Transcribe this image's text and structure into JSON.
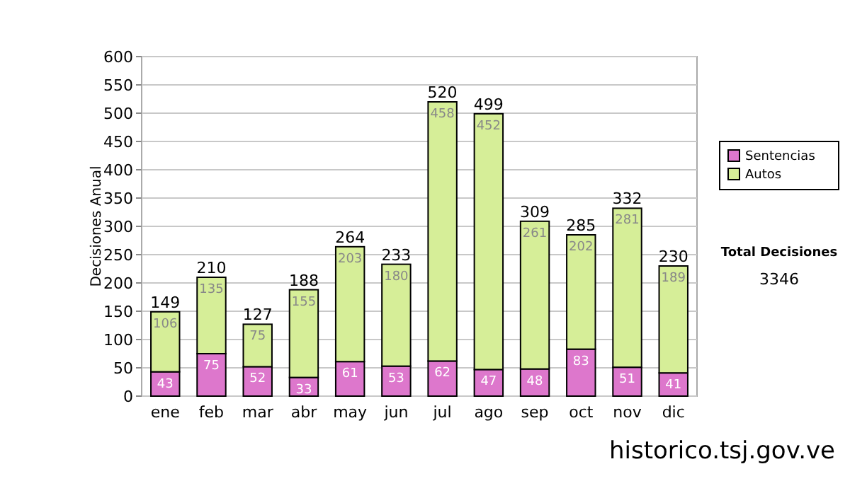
{
  "chart_data": {
    "type": "bar",
    "stacked": true,
    "ylabel": "Decisiones Anual",
    "categories": [
      "ene",
      "feb",
      "mar",
      "abr",
      "may",
      "jun",
      "jul",
      "ago",
      "sep",
      "oct",
      "nov",
      "dic"
    ],
    "series": [
      {
        "name": "Sentencias",
        "color": "#dd77cc",
        "values": [
          43,
          75,
          52,
          33,
          61,
          53,
          62,
          47,
          48,
          83,
          51,
          41
        ]
      },
      {
        "name": "Autos",
        "color": "#d6ee98",
        "values": [
          106,
          135,
          75,
          155,
          203,
          180,
          458,
          452,
          261,
          202,
          281,
          189
        ]
      }
    ],
    "totals": [
      "149",
      "210",
      "127",
      "188",
      "264",
      "233",
      "520",
      "499",
      "309",
      "285",
      "332",
      "230"
    ],
    "data_labels": true,
    "ylim": [
      0,
      600
    ],
    "yticks": [
      0,
      50,
      100,
      150,
      200,
      250,
      300,
      350,
      400,
      450,
      500,
      550,
      600
    ],
    "grid": "y",
    "legend": "right",
    "annotations": [
      "Total Decisiones",
      "3346",
      "historico.tsj.gov.ve"
    ]
  }
}
